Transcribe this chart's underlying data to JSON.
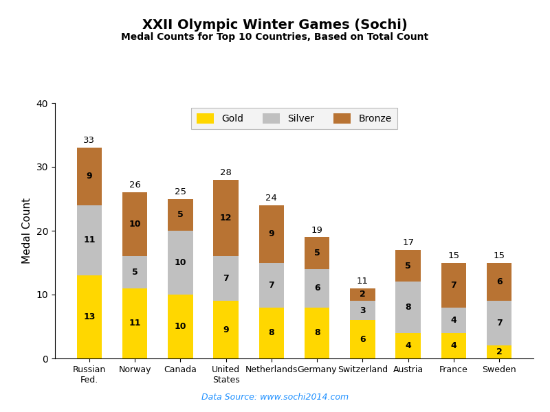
{
  "title": "XXII Olympic Winter Games (Sochi)",
  "subtitle": "Medal Counts for Top 10 Countries, Based on Total Count",
  "countries": [
    "Russian\nFed.",
    "Norway",
    "Canada",
    "United\nStates",
    "Netherlands",
    "Germany",
    "Switzerland",
    "Austria",
    "France",
    "Sweden"
  ],
  "gold": [
    13,
    11,
    10,
    9,
    8,
    8,
    6,
    4,
    4,
    2
  ],
  "silver": [
    11,
    5,
    10,
    7,
    7,
    6,
    3,
    8,
    4,
    7
  ],
  "bronze": [
    9,
    10,
    5,
    12,
    9,
    5,
    2,
    5,
    7,
    6
  ],
  "totals": [
    33,
    26,
    25,
    28,
    24,
    19,
    11,
    17,
    15,
    15
  ],
  "gold_color": "#FFD700",
  "silver_color": "#C0C0C0",
  "bronze_color": "#B87333",
  "ylabel": "Medal Count",
  "ylim": [
    0,
    40
  ],
  "yticks": [
    0,
    10,
    20,
    30,
    40
  ],
  "datasource": "Data Source: www.sochi2014.com",
  "datasource_color": "#1E90FF",
  "background_color": "#FFFFFF",
  "legend_labels": [
    "Gold",
    "Silver",
    "Bronze"
  ]
}
